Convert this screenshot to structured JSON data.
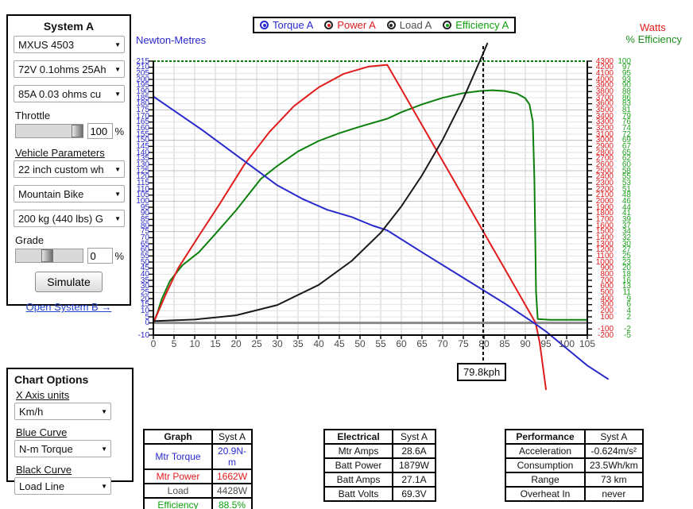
{
  "system_panel": {
    "title": "System A",
    "motor_select": "MXUS 4503",
    "battery_select": "72V 0.1ohms 25Ah",
    "controller_select": "85A 0.03 ohms cu",
    "throttle_label": "Throttle",
    "throttle_value": "100",
    "throttle_unit": "%",
    "vehicle_params_label": "Vehicle Parameters",
    "wheel_select": "22 inch custom wh",
    "vehicle_select": "Mountain Bike",
    "weight_select": "200 kg (440 lbs) G",
    "grade_label": "Grade",
    "grade_value": "0",
    "grade_unit": "%",
    "simulate_button": "Simulate",
    "open_system_b": "Open System B →"
  },
  "chart_options": {
    "title": "Chart Options",
    "x_axis_label": "X Axis units",
    "x_axis_select": "Km/h",
    "blue_curve_label": "Blue Curve",
    "blue_curve_select": "N-m Torque",
    "black_curve_label": "Black Curve",
    "black_curve_select": "Load Line"
  },
  "legend": {
    "items": [
      {
        "label": "Torque A",
        "color": "#2929cc",
        "ring": "#2929cc"
      },
      {
        "label": "Power A",
        "color": "#e01b1b",
        "ring": "#222222"
      },
      {
        "label": "Load A",
        "color": "#222222",
        "ring": "#222222"
      },
      {
        "label": "Efficiency A",
        "color": "#0fa00f",
        "ring": "#222222"
      }
    ]
  },
  "axis_titles": {
    "left": "Newton-Metres",
    "right_watts": "Watts",
    "right_eff": "% Efficiency"
  },
  "chart_data": {
    "type": "line",
    "x_axis": {
      "label": "Km/h",
      "min": 0,
      "max": 105,
      "tick_step": 5,
      "tick_labels": [
        0,
        5,
        10,
        15,
        20,
        25,
        30,
        35,
        40,
        45,
        50,
        55,
        60,
        65,
        70,
        75,
        80,
        85,
        90,
        95,
        100,
        105
      ]
    },
    "y_left_axis": {
      "label": "Newton-Metres",
      "min": -10,
      "max": 215,
      "tick_step": 5,
      "tick_labels": [
        215,
        210,
        205,
        200,
        195,
        190,
        185,
        180,
        175,
        170,
        165,
        160,
        155,
        150,
        145,
        140,
        135,
        130,
        125,
        120,
        115,
        110,
        105,
        100,
        95,
        90,
        85,
        80,
        75,
        70,
        65,
        60,
        55,
        50,
        45,
        40,
        35,
        30,
        25,
        20,
        15,
        10,
        5,
        0,
        -10
      ]
    },
    "y_right_watts_axis": {
      "label": "Watts",
      "min": -200,
      "max": 4300,
      "tick_step": 100,
      "tick_labels": [
        4300,
        4200,
        4100,
        4000,
        3900,
        3800,
        3700,
        3600,
        3500,
        3400,
        3300,
        3200,
        3100,
        3000,
        2900,
        2800,
        2700,
        2600,
        2500,
        2400,
        2300,
        2200,
        2100,
        2000,
        1900,
        1800,
        1700,
        1600,
        1500,
        1400,
        1300,
        1200,
        1100,
        1000,
        900,
        800,
        700,
        600,
        500,
        400,
        300,
        200,
        100,
        -100,
        -200
      ]
    },
    "y_right_eff_axis": {
      "label": "% Efficiency",
      "min": -5,
      "max": 100,
      "tick_labels": [
        100,
        97,
        95,
        93,
        90,
        88,
        86,
        83,
        81,
        79,
        76,
        74,
        72,
        69,
        67,
        65,
        62,
        60,
        58,
        55,
        53,
        51,
        48,
        46,
        44,
        41,
        39,
        37,
        34,
        32,
        30,
        27,
        25,
        23,
        20,
        18,
        16,
        13,
        11,
        9,
        6,
        4,
        2,
        -2,
        -5
      ]
    },
    "series": [
      {
        "name": "Torque A",
        "unit": "N-m",
        "color": "#2929cc",
        "points": [
          [
            0,
            186
          ],
          [
            6,
            172
          ],
          [
            12,
            158
          ],
          [
            18,
            143
          ],
          [
            24,
            128
          ],
          [
            30,
            113
          ],
          [
            36,
            102
          ],
          [
            42,
            93
          ],
          [
            48,
            87
          ],
          [
            53,
            80
          ],
          [
            56.6,
            76
          ],
          [
            65,
            58
          ],
          [
            75,
            37
          ],
          [
            85,
            16
          ],
          [
            92.1,
            0
          ],
          [
            95,
            -7
          ],
          [
            100,
            -21
          ],
          [
            105,
            -35
          ],
          [
            110,
            -46
          ]
        ]
      },
      {
        "name": "Power A",
        "unit": "W",
        "color": "#e01b1b",
        "points": [
          [
            0,
            0
          ],
          [
            3,
            470
          ],
          [
            6,
            900
          ],
          [
            11,
            1430
          ],
          [
            16,
            1950
          ],
          [
            22,
            2600
          ],
          [
            28,
            3130
          ],
          [
            34,
            3560
          ],
          [
            40,
            3870
          ],
          [
            46,
            4090
          ],
          [
            52,
            4210
          ],
          [
            56.6,
            4240
          ],
          [
            65,
            3250
          ],
          [
            75,
            2070
          ],
          [
            85,
            890
          ],
          [
            92.5,
            0
          ],
          [
            93.5,
            -330
          ],
          [
            95,
            -1090
          ]
        ]
      },
      {
        "name": "Load A",
        "unit": "W",
        "color": "#1a1a1a",
        "points": [
          [
            0,
            30
          ],
          [
            10,
            55
          ],
          [
            20,
            125
          ],
          [
            30,
            295
          ],
          [
            40,
            625
          ],
          [
            48,
            1020
          ],
          [
            55,
            1480
          ],
          [
            60,
            1915
          ],
          [
            65,
            2425
          ],
          [
            70,
            3010
          ],
          [
            75,
            3685
          ],
          [
            79.8,
            4428
          ],
          [
            80.8,
            4590
          ]
        ]
      },
      {
        "name": "Efficiency A",
        "unit": "%",
        "color": "#0c800c",
        "points": [
          [
            0,
            0
          ],
          [
            1,
            4
          ],
          [
            2,
            9
          ],
          [
            4,
            16
          ],
          [
            7,
            22
          ],
          [
            11,
            27
          ],
          [
            15,
            34
          ],
          [
            20,
            43
          ],
          [
            26,
            55
          ],
          [
            30,
            60
          ],
          [
            35,
            65.5
          ],
          [
            40,
            69.5
          ],
          [
            45,
            72.5
          ],
          [
            50,
            75
          ],
          [
            56.6,
            78
          ],
          [
            60,
            80.5
          ],
          [
            65,
            83.5
          ],
          [
            70,
            86
          ],
          [
            75,
            87.8
          ],
          [
            79,
            88.6
          ],
          [
            82,
            88.9
          ],
          [
            85,
            88.6
          ],
          [
            88,
            87.6
          ],
          [
            90,
            85.8
          ],
          [
            91,
            83.5
          ],
          [
            91.8,
            77
          ],
          [
            92.2,
            55
          ],
          [
            92.6,
            12
          ],
          [
            93,
            1.5
          ],
          [
            96,
            1.2
          ],
          [
            105,
            1.2
          ]
        ]
      }
    ],
    "cursor": {
      "kph": 79.8,
      "label": "79.8kph"
    },
    "grid": true
  },
  "tables": {
    "graph": {
      "header": [
        "Graph",
        "Syst A"
      ],
      "rows": [
        {
          "label": "Mtr Torque",
          "value": "20.9N-m"
        },
        {
          "label": "Mtr Power",
          "value": "1662W"
        },
        {
          "label": "Load",
          "value": "4428W"
        },
        {
          "label": "Efficiency",
          "value": "88.5%"
        }
      ]
    },
    "electrical": {
      "header": [
        "Electrical",
        "Syst A"
      ],
      "rows": [
        {
          "label": "Mtr Amps",
          "value": "28.6A"
        },
        {
          "label": "Batt Power",
          "value": "1879W"
        },
        {
          "label": "Batt Amps",
          "value": "27.1A"
        },
        {
          "label": "Batt Volts",
          "value": "69.3V"
        }
      ]
    },
    "performance": {
      "header": [
        "Performance",
        "Syst A"
      ],
      "rows": [
        {
          "label": "Acceleration",
          "value": "-0.624m/s²"
        },
        {
          "label": "Consumption",
          "value": "23.5Wh/km"
        },
        {
          "label": "Range",
          "value": "73 km"
        },
        {
          "label": "Overheat In",
          "value": "never"
        }
      ]
    }
  }
}
